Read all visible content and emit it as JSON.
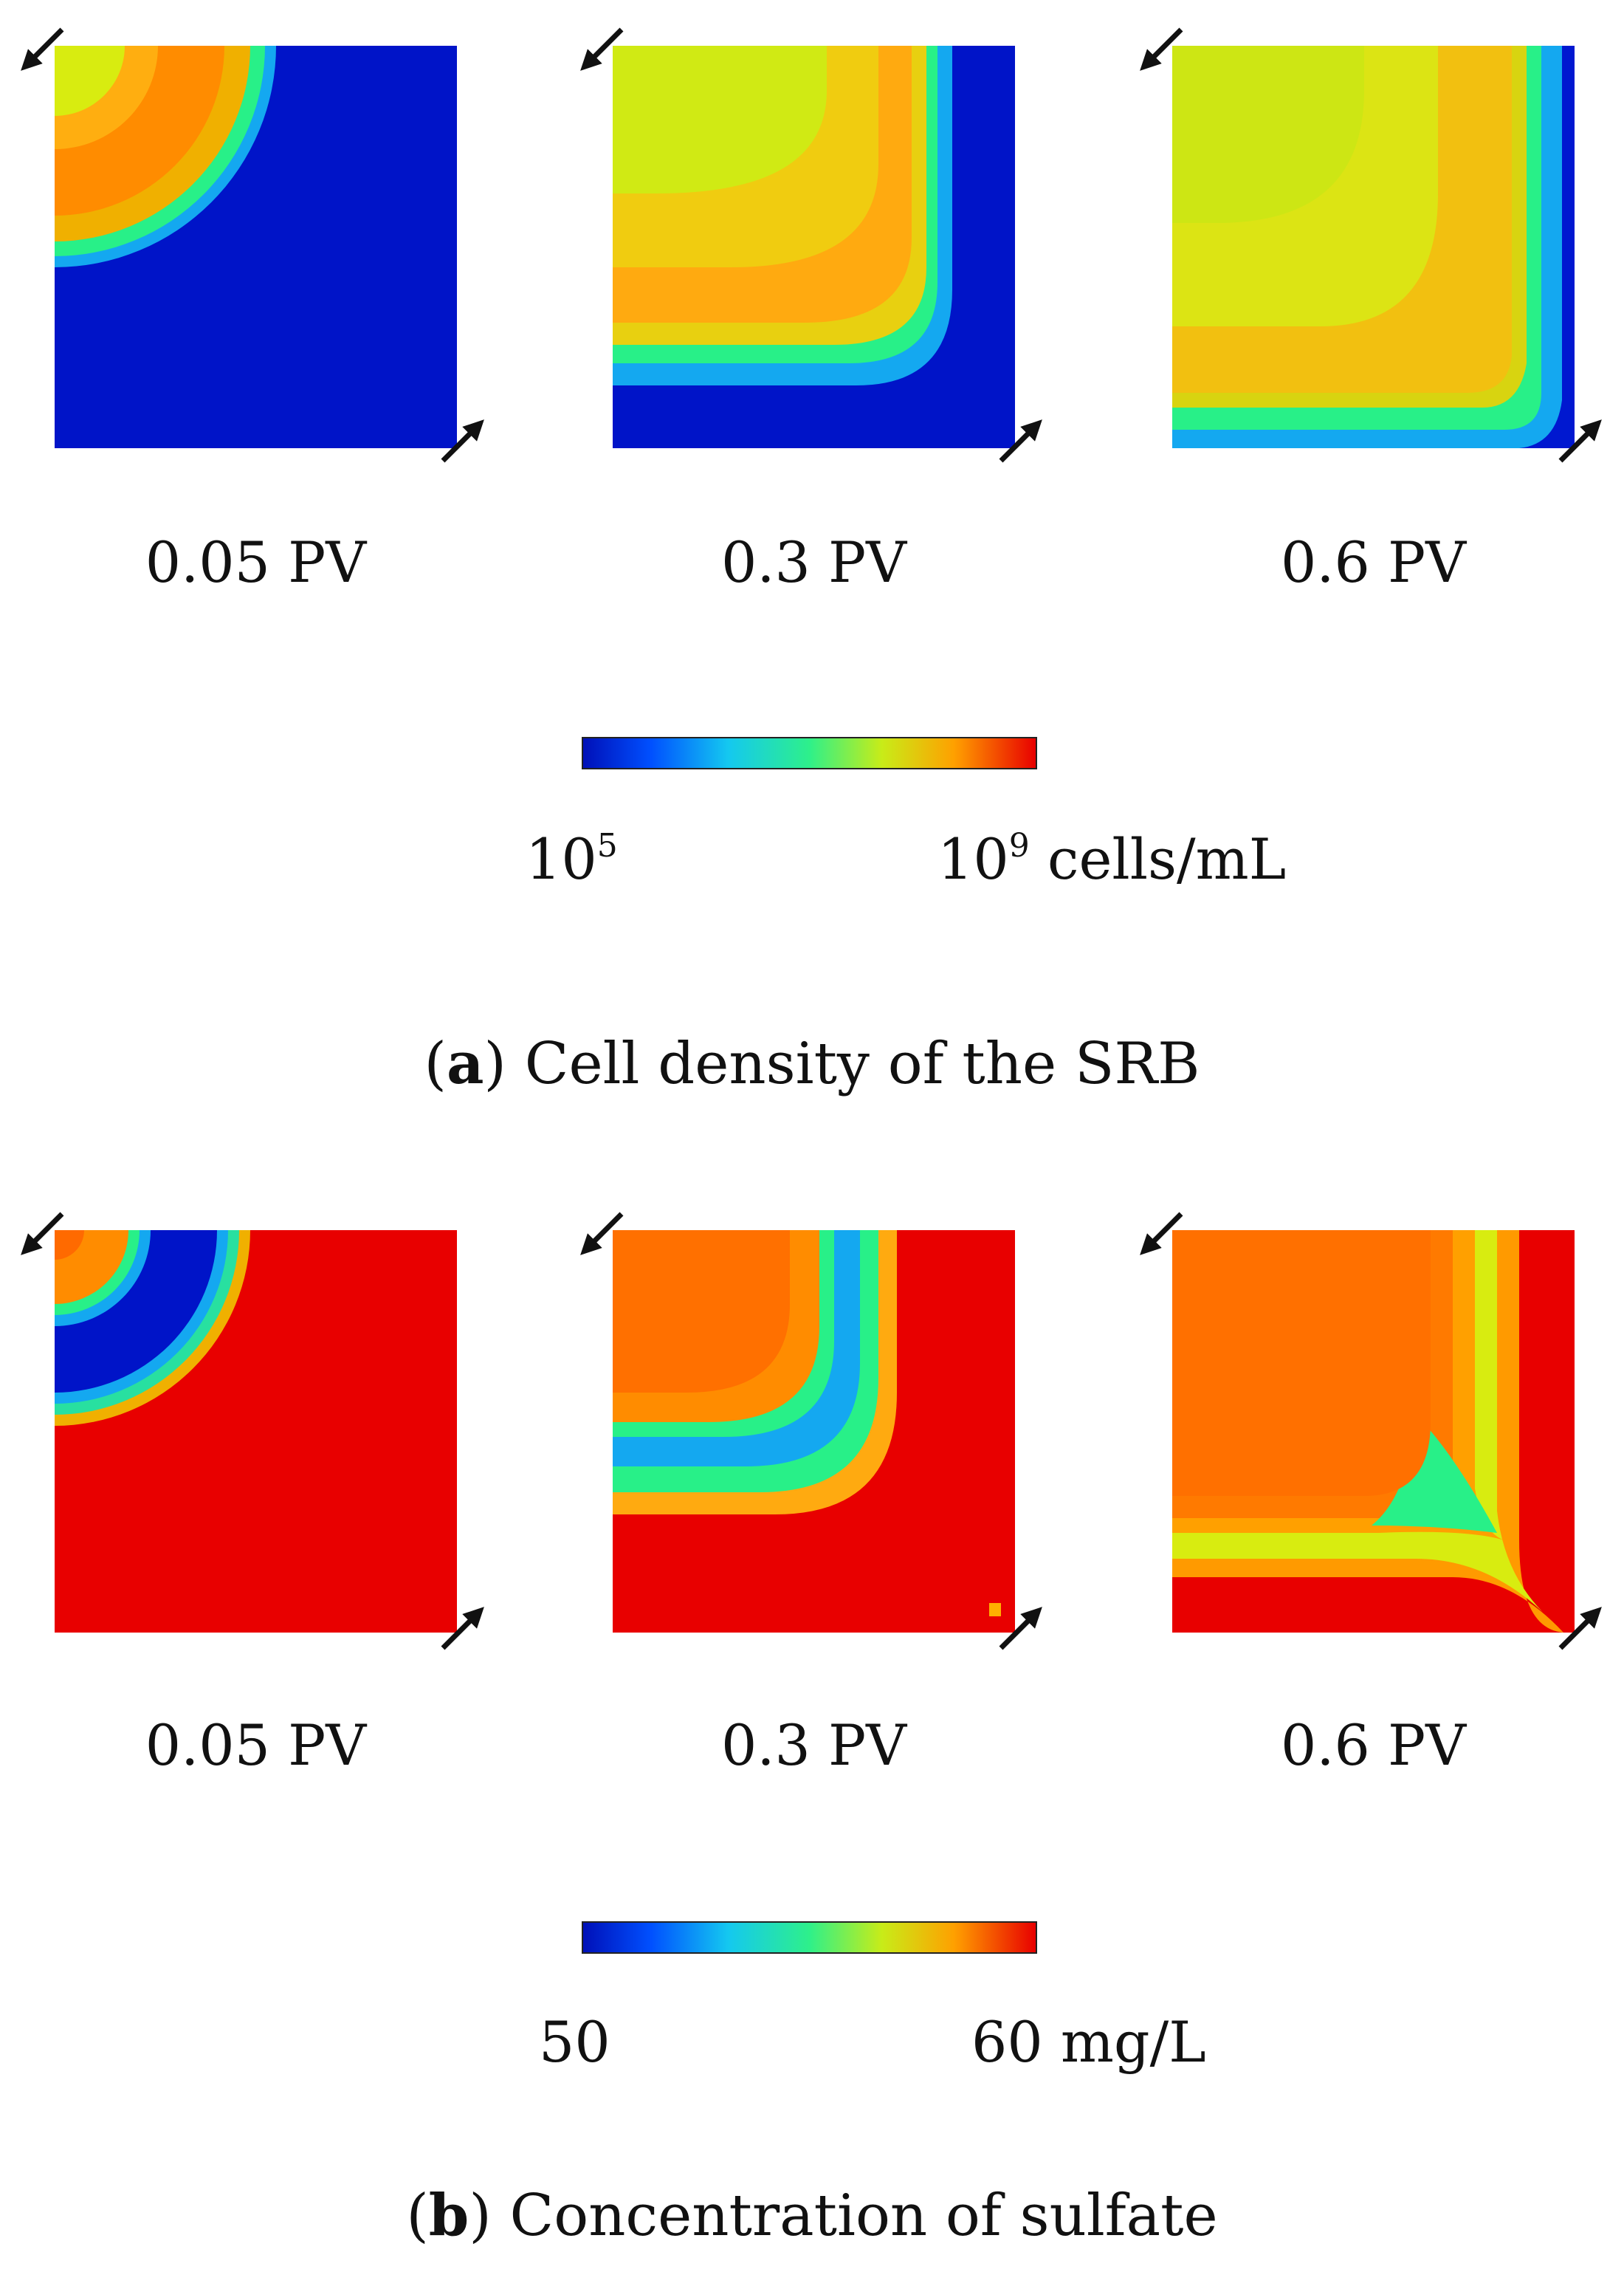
{
  "colors": {
    "jet_dark_blue": "#0014c8",
    "jet_cyan": "#14c8f0",
    "jet_green": "#28f088",
    "jet_yellow": "#d8ec10",
    "jet_orange": "#ff8a00",
    "jet_red": "#e80000"
  },
  "row_a": {
    "panels": [
      {
        "label": "0.05 PV",
        "state": "srb_005"
      },
      {
        "label": "0.3 PV",
        "state": "srb_03"
      },
      {
        "label": "0.6 PV",
        "state": "srb_06"
      }
    ],
    "colorbar": {
      "min_label": "10",
      "min_exp": "5",
      "max_label": "10",
      "max_exp": "9",
      "unit": " cells/mL"
    },
    "caption": {
      "letter": "a",
      "text": " Cell density of the SRB"
    }
  },
  "row_b": {
    "panels": [
      {
        "label": "0.05 PV",
        "state": "sulfate_005"
      },
      {
        "label": "0.3 PV",
        "state": "sulfate_03"
      },
      {
        "label": "0.6 PV",
        "state": "sulfate_06"
      }
    ],
    "colorbar": {
      "min_label": "50",
      "max_label": "60 mg/L"
    },
    "caption": {
      "letter": "b",
      "text": " Concentration of sulfate"
    }
  }
}
